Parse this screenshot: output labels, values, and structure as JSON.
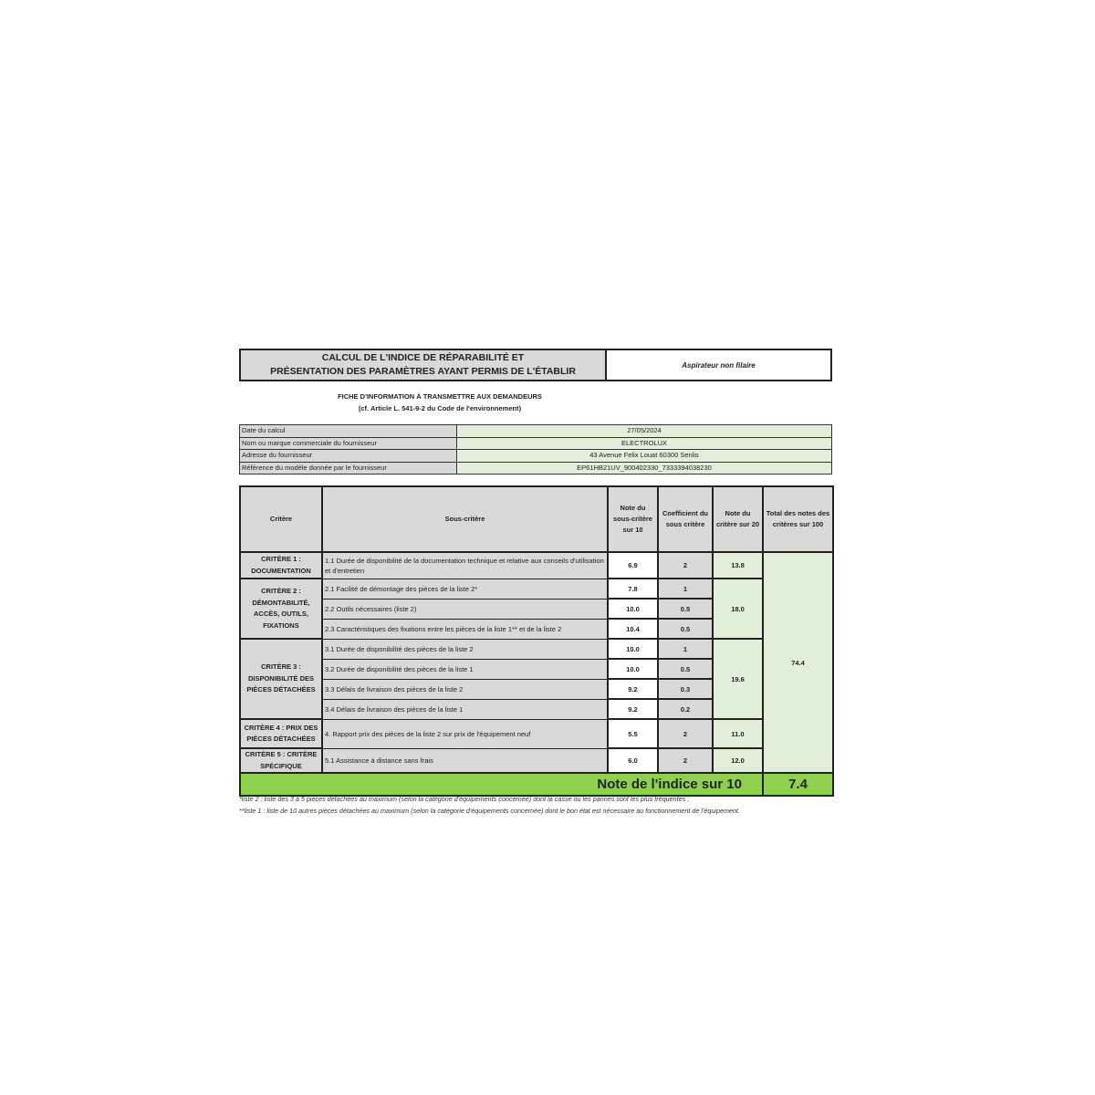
{
  "header": {
    "title_line1": "CALCUL DE L'INDICE DE RÉPARABILITÉ ET",
    "title_line2": "PRÉSENTATION DES PARAMÈTRES AYANT PERMIS DE L'ÉTABLIR",
    "product_type": "Aspirateur non filaire"
  },
  "subtitle": {
    "line1": "FICHE D'INFORMATION À TRANSMETTRE AUX DEMANDEURS",
    "line2": "(cf. Article L. 541-9-2 du Code de l'environnement)"
  },
  "info": [
    {
      "label": "Date du calcul",
      "value": "27/05/2024"
    },
    {
      "label": "Nom ou marque commerciale du fournisseur",
      "value": "ELECTROLUX"
    },
    {
      "label": "Adresse du fournisseur",
      "value": "43  Avenue  Felix Louat  60300 Senlis"
    },
    {
      "label": "Référence du modèle donnée par le fournisseur",
      "value": "EP61HB21UV_900402330_7333394038230"
    }
  ],
  "table": {
    "headers": [
      "Critère",
      "Sous-critère",
      "Note du sous-critère sur 10",
      "Coefficient du sous critère",
      "Note du critère sur 20",
      "Total des notes des critères sur 100"
    ],
    "criteria": [
      {
        "name": "CRITÈRE 1 : DOCUMENTATION",
        "score20": "13.8",
        "subs": [
          {
            "label": "1.1 Durée de disponibilité de la documentation technique et relative aux conseils d'utilisation et d'entretien",
            "note": "6.9",
            "coef": "2"
          }
        ]
      },
      {
        "name": "CRITÈRE 2 : DÉMONTABILITÉ, ACCÈS, OUTILS, FIXATIONS",
        "score20": "18.0",
        "subs": [
          {
            "label": "2.1 Facilité de démontage des pièces de la liste 2*",
            "note": "7.8",
            "coef": "1"
          },
          {
            "label": "2.2 Outils nécessaires (liste 2)",
            "note": "10.0",
            "coef": "0.5"
          },
          {
            "label": "2.3 Caractéristiques des fixations entre les pièces de la liste 1** et de la liste 2",
            "note": "10.4",
            "coef": "0.5"
          }
        ]
      },
      {
        "name": "CRITÈRE 3 : DISPONIBILITÉ DES PIÈCES DÉTACHÉES",
        "score20": "19.6",
        "subs": [
          {
            "label": "3.1 Durée de disponibilité des pièces de la liste 2",
            "note": "10.0",
            "coef": "1"
          },
          {
            "label": "3.2 Durée de disponibilité des pièces de la liste 1",
            "note": "10.0",
            "coef": "0.5"
          },
          {
            "label": "3.3 Délais de livraison des pièces de la liste 2",
            "note": "9.2",
            "coef": "0.3"
          },
          {
            "label": "3.4 Délais de livraison des pièces de la liste 1",
            "note": "9.2",
            "coef": "0.2"
          }
        ]
      },
      {
        "name": "CRITÈRE 4 : PRIX DES PIÈCES DÉTACHÉES",
        "score20": "11.0",
        "subs": [
          {
            "label": "4. Rapport prix des pièces de la liste 2 sur prix de l'équipement neuf",
            "note": "5.5",
            "coef": "2"
          }
        ]
      },
      {
        "name": "CRITÈRE 5 : CRITÈRE SPÉCIFIQUE",
        "score20": "12.0",
        "subs": [
          {
            "label": "5.1 Assistance à distance sans frais",
            "note": "6.0",
            "coef": "2"
          }
        ]
      }
    ],
    "total100": "74.4",
    "final_label": "Note de l'indice sur 10",
    "final_score": "7.4"
  },
  "notes": [
    "*liste 2 : liste des 3 à 5 pièces détachées au maximum (selon la catégorie d'équipements concernée) dont la casse ou les pannes sont les plus fréquentes ;",
    "**liste 1 : liste de 10 autres pièces détachées au maximum (selon la catégorie d'équipements concernée) dont le bon état est nécessaire au fonctionnement de l'équipement."
  ],
  "colors": {
    "header_gray": "#d9d9d9",
    "light_green": "#e2efda",
    "final_green": "#8fd14f"
  }
}
